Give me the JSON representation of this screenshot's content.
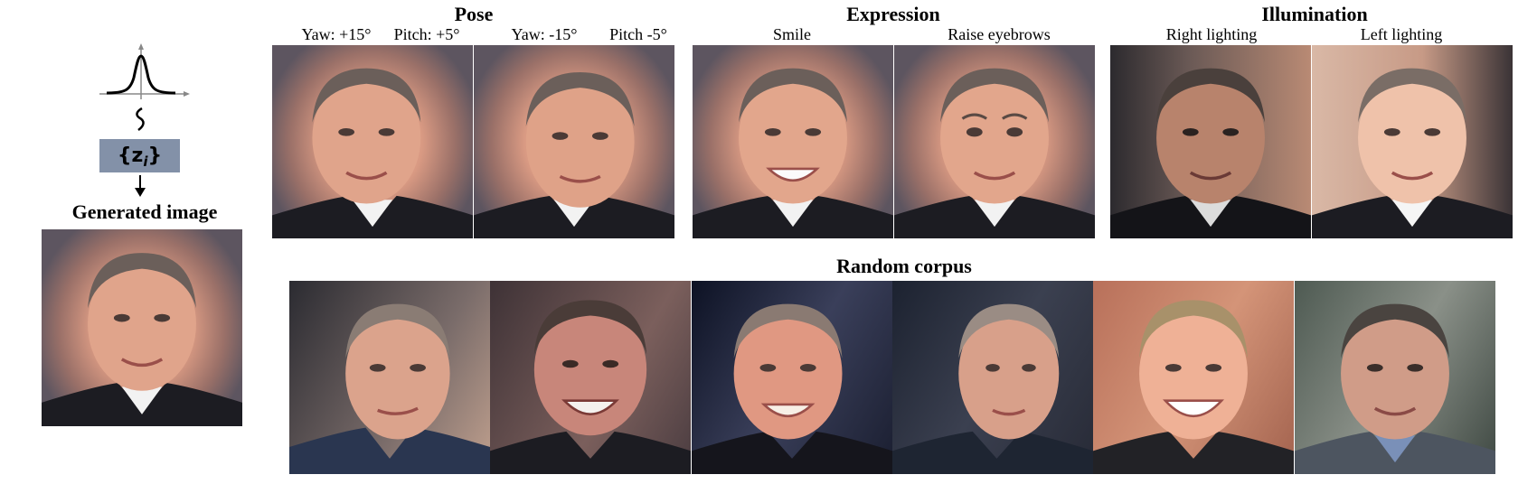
{
  "left_panel": {
    "latent_label_open": "{z",
    "latent_subscript": "i",
    "latent_label_close": "}",
    "generated_label": "Generated image"
  },
  "sections": {
    "pose": {
      "title": "Pose",
      "captions": [
        "Yaw: +15°",
        "Pitch: +5°",
        "Yaw: -15°",
        "Pitch -5°"
      ]
    },
    "expression": {
      "title": "Expression",
      "captions": [
        "Smile",
        "Raise eyebrows"
      ]
    },
    "illumination": {
      "title": "Illumination",
      "captions": [
        "Right lighting",
        "Left lighting"
      ]
    },
    "random": {
      "title": "Random corpus"
    }
  },
  "colors": {
    "latent_box": "#8391a8",
    "skin": "#e0a48b",
    "suit": "#1c1c22"
  }
}
